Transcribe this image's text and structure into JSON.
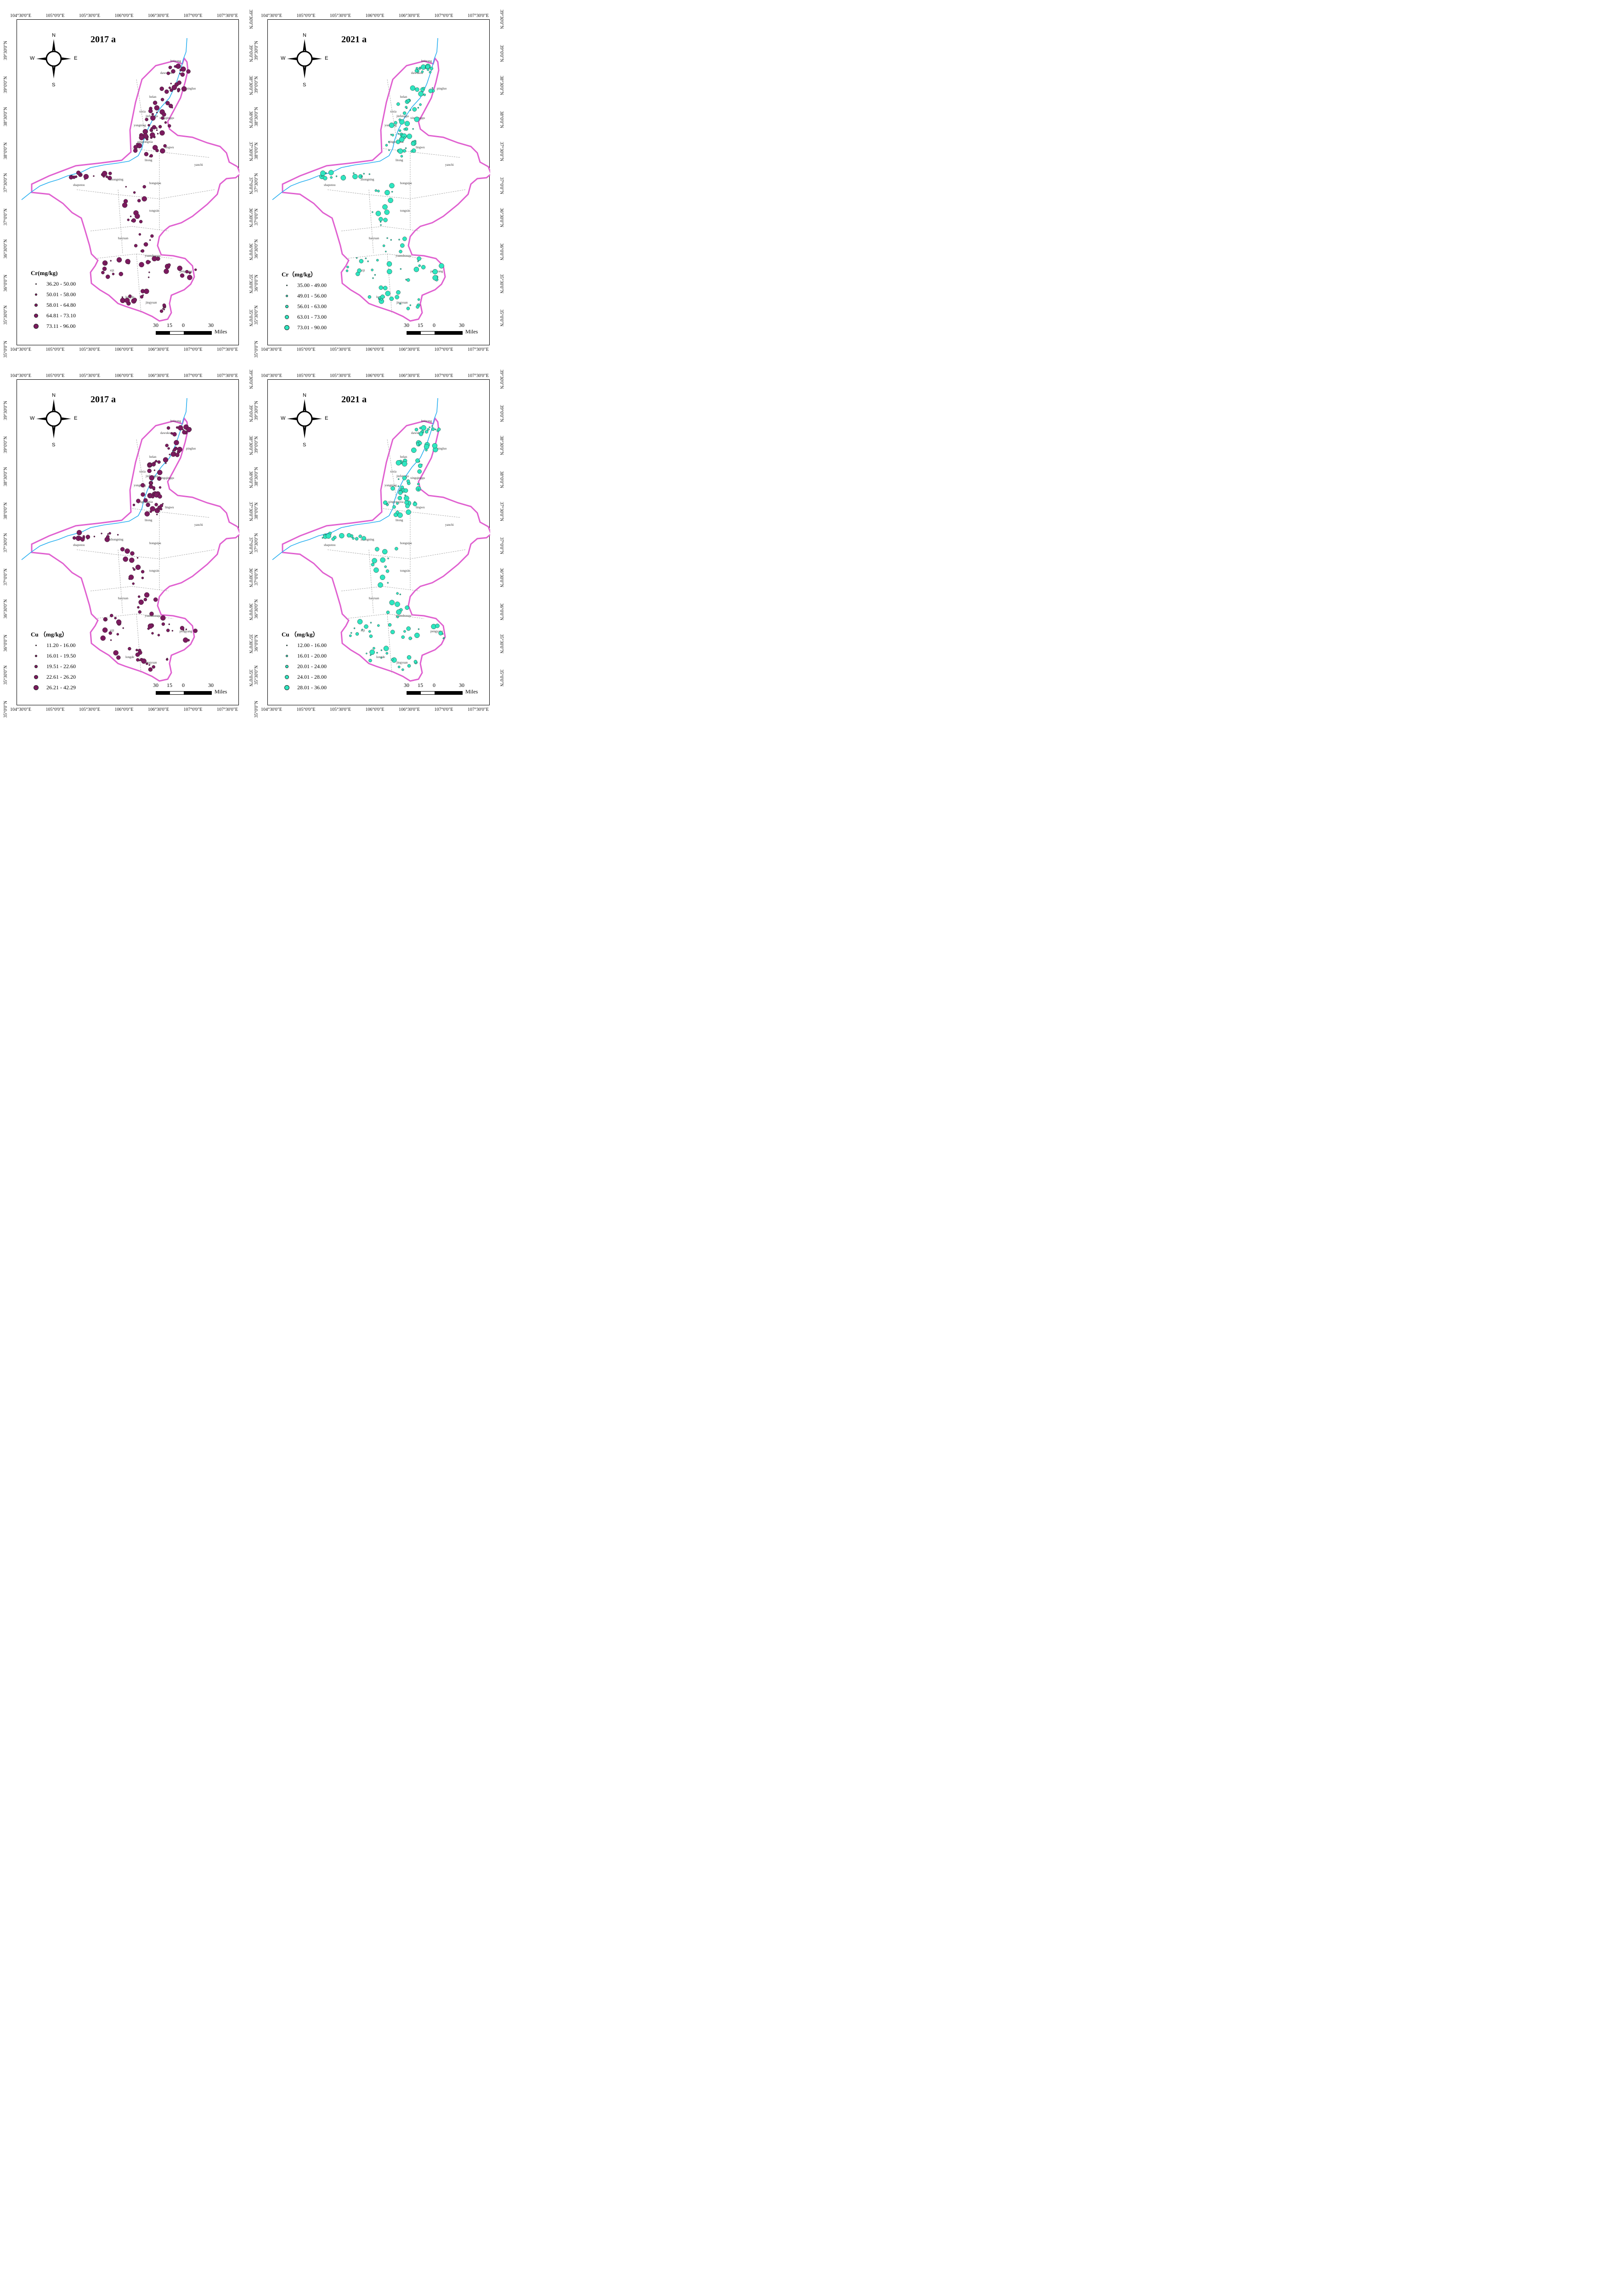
{
  "ticks": {
    "lon": [
      "104°30'0\"E",
      "105°0'0\"E",
      "105°30'0\"E",
      "106°0'0\"E",
      "106°30'0\"E",
      "107°0'0\"E",
      "107°30'0\"E"
    ],
    "lat": [
      "39°30'0\"N",
      "39°0'0\"N",
      "38°30'0\"N",
      "38°0'0\"N",
      "37°30'0\"N",
      "37°0'0\"N",
      "36°30'0\"N",
      "36°0'0\"N",
      "35°30'0\"N",
      "35°0'0\"N"
    ]
  },
  "compass": {
    "n": "N",
    "s": "S",
    "e": "E",
    "w": "W"
  },
  "scale": {
    "n1": "30",
    "n2": "15",
    "n3": "0",
    "n4": "30",
    "unit": "Miles"
  },
  "places": [
    "huinong",
    "dawukou",
    "pingluo",
    "helan",
    "xixia",
    "jinfengqu",
    "xingqingqu",
    "yongning",
    "qingtongxia",
    "lingwu",
    "litong",
    "yanchi",
    "shapotou",
    "zhongning",
    "hongsipu",
    "tongxin",
    "haiyuan",
    "yuanzhouqu",
    "xiji",
    "pengyang",
    "longde",
    "jingyuan"
  ],
  "panels": [
    {
      "year": "2017 a",
      "metal": "Cr",
      "legend_title": "Cr(mg/kg)",
      "classes": [
        "36.20 - 50.00",
        "50.01 - 58.00",
        "58.01 - 64.80",
        "64.81 - 73.10",
        "73.11 - 96.00"
      ],
      "color": "#7b1a5e"
    },
    {
      "year": "2021 a",
      "metal": "Cr",
      "legend_title": "Cr（mg/kg）",
      "classes": [
        "35.00 - 49.00",
        "49.01 - 56.00",
        "56.01 - 63.00",
        "63.01 - 73.00",
        "73.01 - 90.00"
      ],
      "color": "#2ee6c0"
    },
    {
      "year": "2017 a",
      "metal": "Cu",
      "legend_title": "Cu （mg/kg）",
      "classes": [
        "11.20 - 16.00",
        "16.01 - 19.50",
        "19.51 - 22.60",
        "22.61 - 26.20",
        "26.21 - 42.29"
      ],
      "color": "#7b1a5e"
    },
    {
      "year": "2021 a",
      "metal": "Cu",
      "legend_title": "Cu （mg/kg）",
      "classes": [
        "12.00 - 16.00",
        "16.01 - 20.00",
        "20.01 - 24.00",
        "24.01 - 28.00",
        "28.01 - 36.00"
      ],
      "color": "#2ee6c0"
    }
  ]
}
